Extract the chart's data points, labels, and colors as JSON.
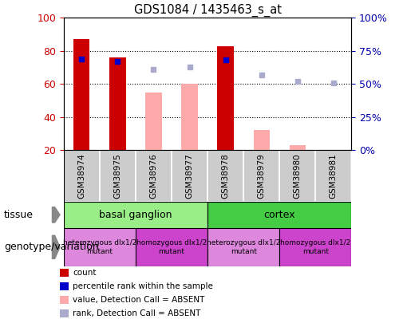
{
  "title": "GDS1084 / 1435463_s_at",
  "samples": [
    "GSM38974",
    "GSM38975",
    "GSM38976",
    "GSM38977",
    "GSM38978",
    "GSM38979",
    "GSM38980",
    "GSM38981"
  ],
  "count_bars": [
    87,
    76,
    null,
    null,
    83,
    null,
    null,
    null
  ],
  "count_color": "#cc0000",
  "absent_value_bars": [
    null,
    null,
    55,
    60,
    null,
    32,
    23,
    null
  ],
  "absent_value_color": "#ffaaaa",
  "percentile_rank_dots": [
    69,
    67,
    null,
    null,
    68,
    null,
    null,
    null
  ],
  "percentile_rank_color": "#0000cc",
  "absent_rank_dots": [
    null,
    null,
    61,
    63,
    null,
    57,
    52,
    51
  ],
  "absent_rank_color": "#aaaacc",
  "ylim": [
    20,
    100
  ],
  "yticks": [
    20,
    40,
    60,
    80,
    100
  ],
  "y2ticks": [
    0,
    25,
    50,
    75,
    100
  ],
  "y2ticklabels": [
    "0%",
    "25%",
    "50%",
    "75%",
    "100%"
  ],
  "left_tick_color": "#cc0000",
  "right_tick_color": "#0000aa",
  "sample_box_color": "#cccccc",
  "tissue_basal_color": "#99ee88",
  "tissue_cortex_color": "#44cc44",
  "geno_hetero_color": "#dd88dd",
  "geno_homo_color": "#cc44cc",
  "tissue_label": "tissue",
  "genotype_label": "genotype/variation",
  "legend_items": [
    {
      "label": "count",
      "color": "#cc0000"
    },
    {
      "label": "percentile rank within the sample",
      "color": "#0000cc"
    },
    {
      "label": "value, Detection Call = ABSENT",
      "color": "#ffaaaa"
    },
    {
      "label": "rank, Detection Call = ABSENT",
      "color": "#aaaacc"
    }
  ]
}
